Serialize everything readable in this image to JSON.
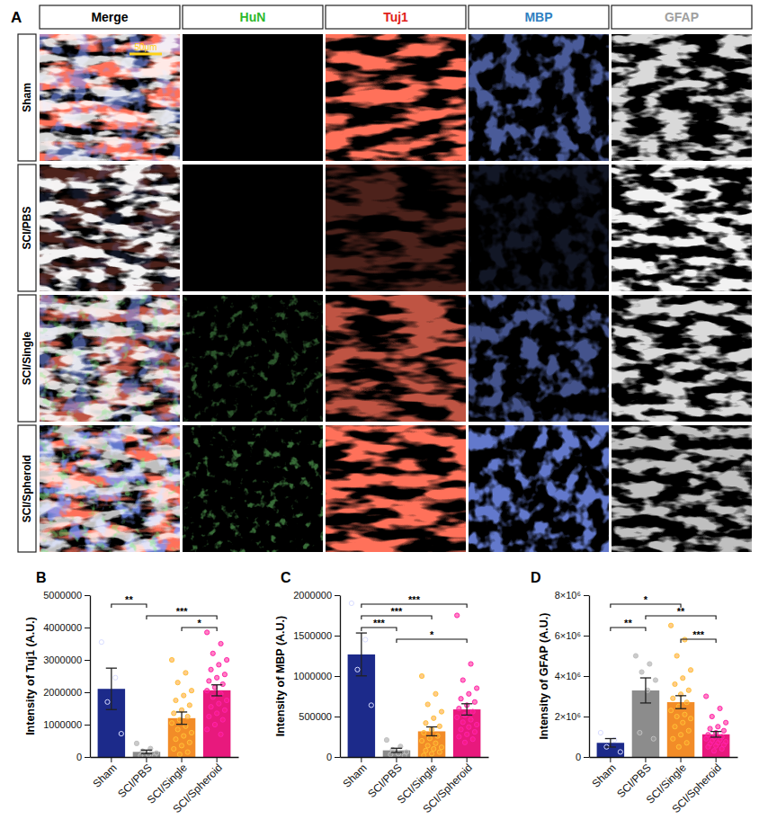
{
  "panel_labels": [
    "A",
    "B",
    "C",
    "D"
  ],
  "panel_a": {
    "columns": [
      "Merge",
      "HuN",
      "Tuj1",
      "MBP",
      "GFAP"
    ],
    "column_colors": [
      "#000000",
      "#2eb82e",
      "#e0201b",
      "#2f7fc1",
      "#a0a0a0"
    ],
    "rows": [
      "Sham",
      "SCI/PBS",
      "SCI/Single",
      "SCI/Spheroid"
    ],
    "scale_bar": "50μm"
  },
  "chart_data": [
    {
      "type": "bar",
      "ylabel": "Intensity of Tuj1 (A.U.)",
      "categories": [
        "Sham",
        "SCI/PBS",
        "SCI/Single",
        "SCI/Spheroid"
      ],
      "values": [
        2105000,
        158000,
        1200000,
        2060000
      ],
      "errors": [
        640000,
        55000,
        190000,
        170000
      ],
      "colors": [
        "#1c2a8a",
        "#8c8c8c",
        "#f28c28",
        "#e8197d"
      ],
      "points": [
        [
          3550000,
          2450000,
          1700000,
          720000
        ],
        [
          420000,
          260000,
          180000,
          120000,
          70000,
          40000,
          20000
        ],
        [
          3000000,
          2600000,
          2300000,
          2050000,
          1900000,
          1750000,
          1600000,
          1450000,
          1350000,
          1250000,
          1150000,
          1050000,
          950000,
          850000,
          750000,
          650000,
          550000,
          450000,
          350000,
          250000,
          150000,
          80000
        ],
        [
          3850000,
          3500000,
          3200000,
          3000000,
          2850000,
          2700000,
          2550000,
          2450000,
          2350000,
          2250000,
          2150000,
          2050000,
          1950000,
          1850000,
          1750000,
          1650000,
          1550000,
          1450000,
          1350000,
          1250000,
          1150000,
          1000000,
          850000,
          700000
        ]
      ],
      "significance": [
        {
          "pair": [
            "Sham",
            "SCI/PBS"
          ],
          "label": "**"
        },
        {
          "pair": [
            "SCI/PBS",
            "SCI/Spheroid"
          ],
          "label": "***"
        },
        {
          "pair": [
            "SCI/Single",
            "SCI/Spheroid"
          ],
          "label": "*"
        }
      ],
      "ylim": [
        0,
        5000000
      ],
      "yticks": [
        0,
        1000000,
        2000000,
        3000000,
        4000000,
        5000000
      ],
      "grid": false
    },
    {
      "type": "bar",
      "ylabel": "Intensity of MBP (A.U.)",
      "categories": [
        "Sham",
        "SCI/PBS",
        "SCI/Single",
        "SCI/Spheroid"
      ],
      "values": [
        1267500,
        82000,
        317000,
        588000
      ],
      "errors": [
        265000,
        26000,
        55000,
        70000
      ],
      "colors": [
        "#1c2a8a",
        "#8c8c8c",
        "#f28c28",
        "#e8197d"
      ],
      "points": [
        [
          1900000,
          1450000,
          1080000,
          640000
        ],
        [
          210000,
          130000,
          90000,
          60000,
          40000,
          30000,
          15000
        ],
        [
          1000000,
          780000,
          650000,
          560000,
          480000,
          420000,
          380000,
          340000,
          300000,
          260000,
          230000,
          200000,
          170000,
          140000,
          120000,
          100000,
          80000,
          60000,
          40000,
          20000
        ],
        [
          1750000,
          1150000,
          950000,
          850000,
          780000,
          720000,
          680000,
          640000,
          600000,
          560000,
          520000,
          490000,
          460000,
          430000,
          400000,
          370000,
          340000,
          310000,
          280000,
          250000,
          220000,
          180000
        ]
      ],
      "significance": [
        {
          "pair": [
            "Sham",
            "SCI/Spheroid"
          ],
          "label": "***"
        },
        {
          "pair": [
            "Sham",
            "SCI/Single"
          ],
          "label": "***"
        },
        {
          "pair": [
            "Sham",
            "SCI/PBS"
          ],
          "label": "***"
        },
        {
          "pair": [
            "SCI/PBS",
            "SCI/Spheroid"
          ],
          "label": "*"
        }
      ],
      "ylim": [
        0,
        2000000
      ],
      "yticks": [
        0,
        500000,
        1000000,
        1500000,
        2000000
      ],
      "grid": false
    },
    {
      "type": "bar",
      "ylabel": "Intensity of GFAP (A.U.)",
      "categories": [
        "Sham",
        "SCI/PBS",
        "SCI/Single",
        "SCI/Spheroid"
      ],
      "values": [
        700000,
        3290000,
        2710000,
        1120000
      ],
      "errors": [
        210000,
        620000,
        320000,
        140000
      ],
      "colors": [
        "#1c2a8a",
        "#8c8c8c",
        "#f28c28",
        "#e8197d"
      ],
      "points": [
        [
          1200000,
          850000,
          500000,
          250000
        ],
        [
          5000000,
          4600000,
          4200000,
          3800000,
          3300000,
          1200000,
          900000
        ],
        [
          6500000,
          5800000,
          5000000,
          4300000,
          3900000,
          3600000,
          3300000,
          3100000,
          2900000,
          2700000,
          2500000,
          2300000,
          2100000,
          2000000,
          1900000,
          1700000,
          1500000,
          1300000,
          1100000,
          900000,
          700000,
          500000
        ],
        [
          3000000,
          2400000,
          2000000,
          1700000,
          1500000,
          1400000,
          1300000,
          1200000,
          1100000,
          1000000,
          950000,
          900000,
          850000,
          800000,
          750000,
          700000,
          650000,
          600000,
          550000,
          500000,
          400000,
          300000
        ]
      ],
      "significance": [
        {
          "pair": [
            "Sham",
            "SCI/Single"
          ],
          "label": "*"
        },
        {
          "pair": [
            "SCI/PBS",
            "SCI/Spheroid"
          ],
          "label": "**"
        },
        {
          "pair": [
            "Sham",
            "SCI/PBS"
          ],
          "label": "**"
        },
        {
          "pair": [
            "SCI/Single",
            "SCI/Spheroid"
          ],
          "label": "***"
        }
      ],
      "ylim": [
        0,
        8000000
      ],
      "yticks": [
        0,
        {
          "value": 2000000,
          "label": "2×10⁶"
        },
        {
          "value": 4000000,
          "label": "4×10⁶"
        },
        {
          "value": 6000000,
          "label": "6×10⁶"
        },
        {
          "value": 8000000,
          "label": "8×10⁶"
        }
      ],
      "grid": false
    }
  ]
}
